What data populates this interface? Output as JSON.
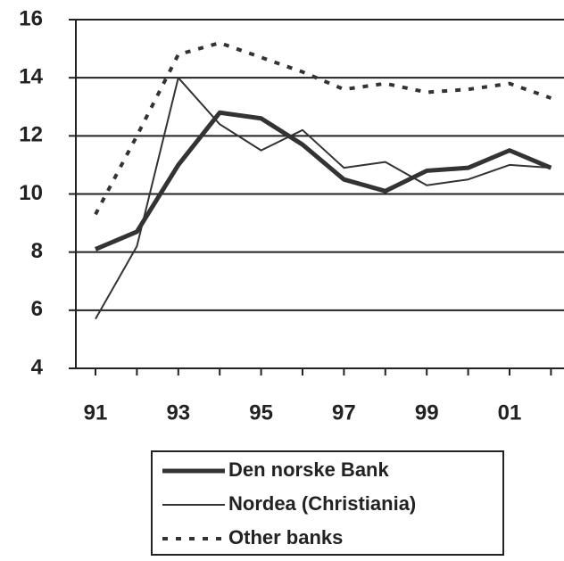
{
  "chart_data": {
    "type": "line",
    "categories": [
      "91",
      null,
      "93",
      null,
      "95",
      null,
      "97",
      null,
      "99",
      null,
      "01",
      null
    ],
    "series": [
      {
        "name": "Den norske Bank",
        "color": "#333333",
        "width": 5,
        "dash": "solid",
        "values": [
          8.1,
          8.7,
          11.0,
          12.8,
          12.6,
          11.7,
          10.5,
          10.1,
          10.8,
          10.9,
          11.5,
          10.9
        ]
      },
      {
        "name": "Nordea (Christiania)",
        "color": "#333333",
        "width": 2,
        "dash": "solid",
        "values": [
          5.7,
          8.2,
          14.0,
          12.4,
          11.5,
          12.2,
          10.9,
          11.1,
          10.3,
          10.5,
          11.0,
          10.9
        ]
      },
      {
        "name": "Other banks",
        "color": "#333333",
        "width": 4,
        "dash": "dotted",
        "values": [
          9.3,
          12.0,
          14.8,
          15.2,
          14.7,
          14.2,
          13.6,
          13.8,
          13.5,
          13.6,
          13.8,
          13.3
        ]
      }
    ],
    "ylim": [
      4,
      16
    ],
    "yticks": [
      4,
      6,
      8,
      10,
      12,
      14,
      16
    ],
    "grid": true
  }
}
